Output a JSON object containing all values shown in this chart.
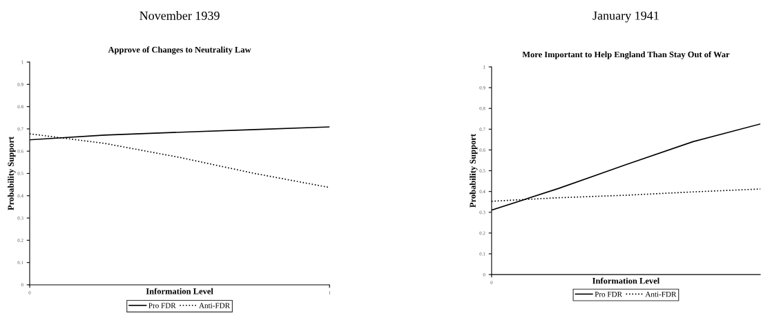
{
  "chart_data": [
    {
      "type": "line",
      "title": "November 1939",
      "subtitle": "Approve of Changes to Neutrality Law",
      "xlabel": "Information Level",
      "ylabel": "Probability Support",
      "x": [
        0,
        0.25,
        0.5,
        0.75,
        1
      ],
      "series": [
        {
          "name": "Pro FDR",
          "color": "#000000",
          "line_style": "solid",
          "values": [
            0.651,
            0.672,
            0.685,
            0.697,
            0.709
          ]
        },
        {
          "name": "Anti-FDR",
          "color": "#000000",
          "line_style": "dotted",
          "values": [
            0.678,
            0.635,
            0.572,
            0.5,
            0.437
          ]
        }
      ],
      "xlim": [
        0,
        1
      ],
      "xticks": [
        0,
        1
      ],
      "ylim": [
        0,
        1
      ],
      "yticks": [
        0,
        0.1,
        0.2,
        0.3,
        0.4,
        0.5,
        0.6,
        0.7,
        0.8,
        0.9,
        1
      ],
      "grid": false,
      "legend": "bottom",
      "marker": "none"
    },
    {
      "type": "line",
      "title": "January 1941",
      "subtitle": "More Important to Help England Than Stay Out of War",
      "xlabel": "Information Level",
      "ylabel": "Probability Support",
      "categories": [
        null,
        null,
        null,
        null,
        null
      ],
      "series": [
        {
          "name": "Pro FDR",
          "color": "#000000",
          "line_style": "solid",
          "values": [
            0.31,
            0.415,
            0.529,
            0.64,
            0.725
          ]
        },
        {
          "name": "Anti-FDR",
          "color": "#000000",
          "line_style": "dotted",
          "values": [
            0.353,
            0.37,
            0.382,
            0.398,
            0.412
          ]
        }
      ],
      "annotations": [
        "0"
      ],
      "ylim": [
        0,
        1
      ],
      "yticks": [
        0,
        0.1,
        0.2,
        0.3,
        0.4,
        0.5,
        0.6,
        0.7,
        0.8,
        0.9,
        1
      ],
      "grid": false,
      "legend": "bottom",
      "marker": "none"
    }
  ]
}
